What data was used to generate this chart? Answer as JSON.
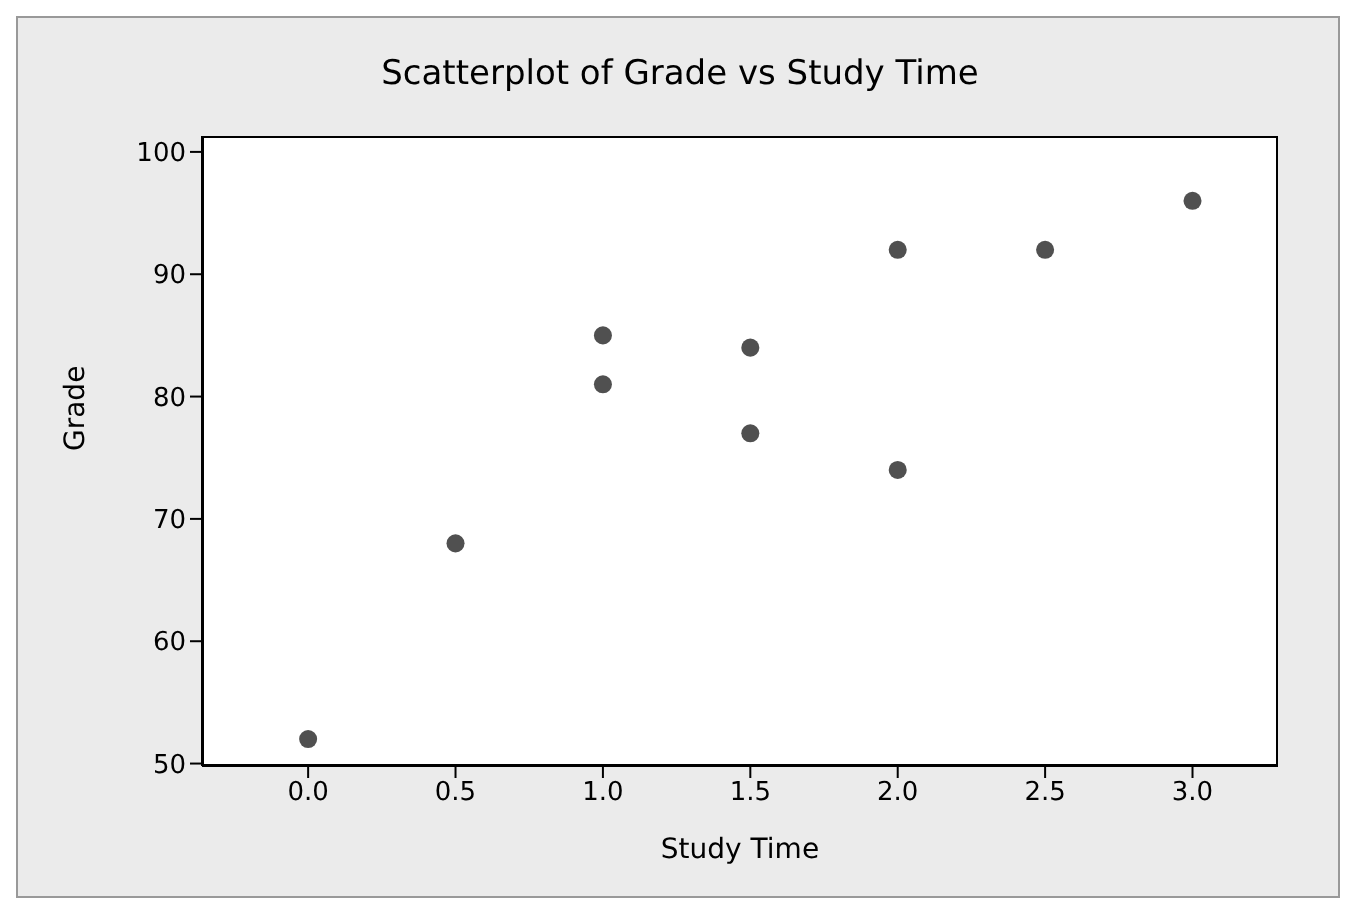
{
  "chart_data": {
    "type": "scatter",
    "title": "Scatterplot of Grade vs Study Time",
    "xlabel": "Study Time",
    "ylabel": "Grade",
    "x": [
      0,
      0.5,
      1,
      1,
      1.5,
      1.5,
      2,
      2,
      2.5,
      3
    ],
    "series": [
      {
        "color": "#505050",
        "values": [
          52,
          68,
          85,
          81,
          84,
          77,
          92,
          74,
          92,
          96
        ]
      }
    ],
    "xlim": [
      -0.36,
      3.29
    ],
    "xticks": [
      {
        "value": 0,
        "label": "0.0"
      },
      {
        "value": 0.5,
        "label": "0.5"
      },
      {
        "value": 1,
        "label": "1.0"
      },
      {
        "value": 1.5,
        "label": "1.5"
      },
      {
        "value": 2,
        "label": "2.0"
      },
      {
        "value": 2.5,
        "label": "2.5"
      },
      {
        "value": 3,
        "label": "3.0"
      }
    ],
    "ylim": [
      49.8,
      101.3
    ],
    "yticks": [
      50,
      60,
      70,
      80,
      90,
      100
    ],
    "marker": "circle",
    "grid": false
  }
}
